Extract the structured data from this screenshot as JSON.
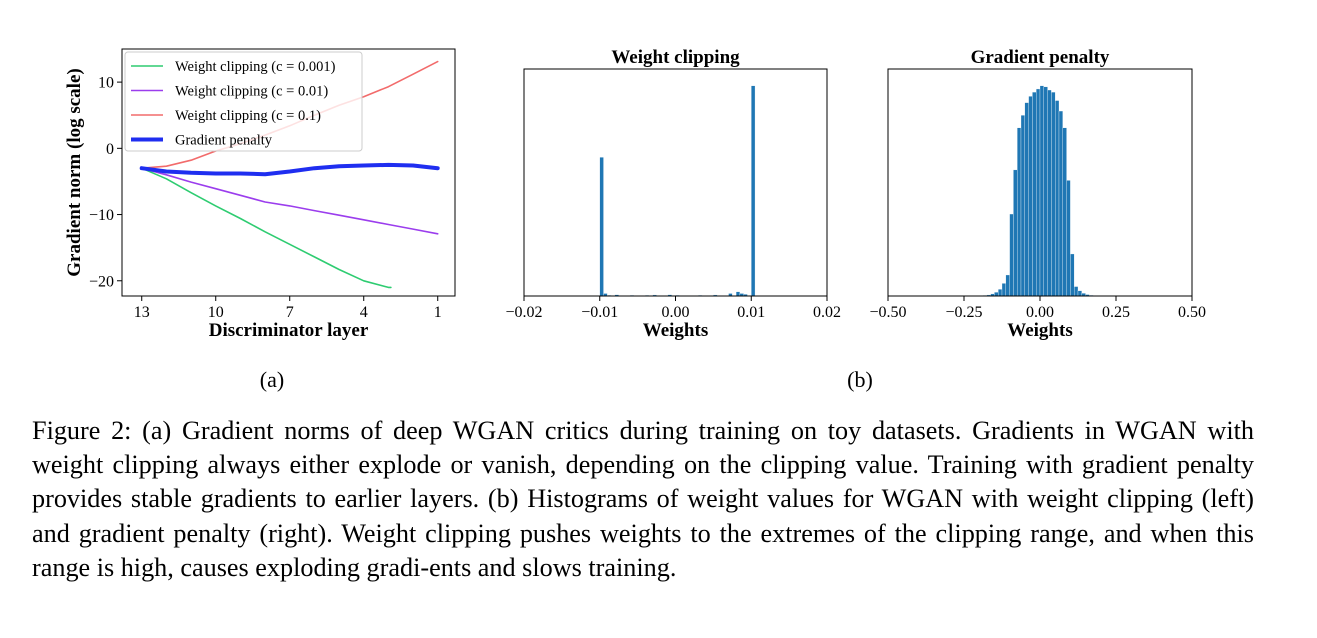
{
  "figure": {
    "subfigure_labels": [
      "(a)",
      "(b)"
    ],
    "caption": "Figure 2: (a) Gradient norms of deep WGAN critics during training on toy datasets. Gradients in WGAN with weight clipping always either explode or vanish, depending on the clipping value. Training with gradient penalty provides stable gradients to earlier layers. (b) Histograms of weight values for WGAN with weight clipping (left) and gradient penalty (right). Weight clipping pushes weights to the extremes of the clipping range, and when this range is high, causes exploding gradi-ents and slows training."
  },
  "chart_data": [
    {
      "type": "line",
      "title": "",
      "xlabel": "Discriminator layer",
      "ylabel": "Gradient norm (log scale)",
      "xlim": [
        13.8,
        0.3
      ],
      "ylim": [
        -22.3,
        15
      ],
      "xticks": [
        13,
        10,
        7,
        4,
        1
      ],
      "xtick_labels": [
        "13",
        "10",
        "7",
        "4",
        "1"
      ],
      "yticks": [
        10,
        0,
        -10,
        -20
      ],
      "ytick_labels": [
        "10",
        "0",
        "−10",
        "−20"
      ],
      "legend_position": "top-left",
      "series": [
        {
          "name": "Weight clipping (c = 0.001)",
          "color": "#2ecc71",
          "width": 1.6,
          "x": [
            13,
            12,
            11,
            10,
            9,
            8,
            7,
            6,
            5,
            4,
            3,
            2.9
          ],
          "y": [
            -3.0,
            -4.6,
            -6.7,
            -8.7,
            -10.6,
            -12.6,
            -14.5,
            -16.4,
            -18.3,
            -20.0,
            -21.0,
            -21.0
          ]
        },
        {
          "name": "Weight clipping (c = 0.01)",
          "color": "#9b3ded",
          "width": 1.6,
          "x": [
            13,
            12,
            11,
            10,
            9,
            8,
            7,
            6,
            5,
            4,
            3,
            2,
            1
          ],
          "y": [
            -3.0,
            -4.0,
            -5.1,
            -6.1,
            -7.1,
            -8.1,
            -8.7,
            -9.4,
            -10.1,
            -10.8,
            -11.5,
            -12.2,
            -12.9
          ]
        },
        {
          "name": "Weight clipping (c = 0.1)",
          "color": "#f26b6b",
          "width": 1.6,
          "x": [
            13,
            12,
            11,
            10,
            9,
            8,
            7,
            6,
            5,
            4,
            3,
            2,
            1
          ],
          "y": [
            -3.0,
            -2.7,
            -1.8,
            -0.4,
            0.7,
            2.0,
            3.4,
            5.0,
            6.5,
            7.8,
            9.3,
            11.2,
            13.1
          ]
        },
        {
          "name": "Gradient penalty",
          "color": "#1f2ef0",
          "width": 4,
          "x": [
            13,
            12,
            11,
            10,
            9,
            8,
            7,
            6,
            5,
            4,
            3,
            2,
            1
          ],
          "y": [
            -3.0,
            -3.5,
            -3.7,
            -3.8,
            -3.8,
            -3.9,
            -3.5,
            -3.0,
            -2.7,
            -2.6,
            -2.5,
            -2.6,
            -3.0
          ]
        }
      ]
    },
    {
      "type": "bar",
      "title": "Weight clipping",
      "xlabel": "Weights",
      "ylabel": "",
      "xlim": [
        -0.02,
        0.02
      ],
      "ylim": [
        0,
        1.08
      ],
      "xticks": [
        -0.02,
        -0.01,
        0.0,
        0.01,
        0.02
      ],
      "xtick_labels": [
        "−0.02",
        "−0.01",
        "0.00",
        "0.01",
        "0.02"
      ],
      "bin_width": 0.0005,
      "color": "#1f77b4",
      "bins": [
        [
          -0.01,
          0.66
        ],
        [
          -0.0095,
          0.012
        ],
        [
          -0.009,
          0.004
        ],
        [
          -0.008,
          0.006
        ],
        [
          -0.006,
          0.004
        ],
        [
          -0.004,
          0.004
        ],
        [
          -0.003,
          0.005
        ],
        [
          -0.001,
          0.006
        ],
        [
          0.0,
          0.004
        ],
        [
          0.003,
          0.004
        ],
        [
          0.005,
          0.005
        ],
        [
          0.007,
          0.012
        ],
        [
          0.008,
          0.02
        ],
        [
          0.0085,
          0.012
        ],
        [
          0.009,
          0.008
        ],
        [
          0.01,
          1.0
        ]
      ]
    },
    {
      "type": "bar",
      "title": "Gradient penalty",
      "xlabel": "Weights",
      "ylabel": "",
      "xlim": [
        -0.5,
        0.5
      ],
      "ylim": [
        0,
        1.08
      ],
      "xticks": [
        -0.5,
        -0.25,
        0.0,
        0.25,
        0.5
      ],
      "xtick_labels": [
        "−0.50",
        "−0.25",
        "0.00",
        "0.25",
        "0.50"
      ],
      "bin_width": 0.0125,
      "color": "#1f77b4",
      "bins": [
        [
          -0.2,
          0.002
        ],
        [
          -0.1875,
          0.003
        ],
        [
          -0.175,
          0.005
        ],
        [
          -0.1625,
          0.01
        ],
        [
          -0.15,
          0.018
        ],
        [
          -0.1375,
          0.032
        ],
        [
          -0.125,
          0.06
        ],
        [
          -0.1125,
          0.1
        ],
        [
          -0.1,
          0.39
        ],
        [
          -0.0875,
          0.6
        ],
        [
          -0.075,
          0.8
        ],
        [
          -0.0625,
          0.86
        ],
        [
          -0.05,
          0.92
        ],
        [
          -0.0375,
          0.95
        ],
        [
          -0.025,
          0.97
        ],
        [
          -0.0125,
          0.985
        ],
        [
          0.0,
          1.0
        ],
        [
          0.0125,
          0.995
        ],
        [
          0.025,
          0.98
        ],
        [
          0.0375,
          0.97
        ],
        [
          0.05,
          0.93
        ],
        [
          0.0625,
          0.88
        ],
        [
          0.075,
          0.8
        ],
        [
          0.0875,
          0.55
        ],
        [
          0.1,
          0.2
        ],
        [
          0.1125,
          0.045
        ],
        [
          0.125,
          0.025
        ],
        [
          0.1375,
          0.013
        ],
        [
          0.15,
          0.007
        ],
        [
          0.1625,
          0.004
        ],
        [
          0.175,
          0.002
        ]
      ]
    }
  ]
}
